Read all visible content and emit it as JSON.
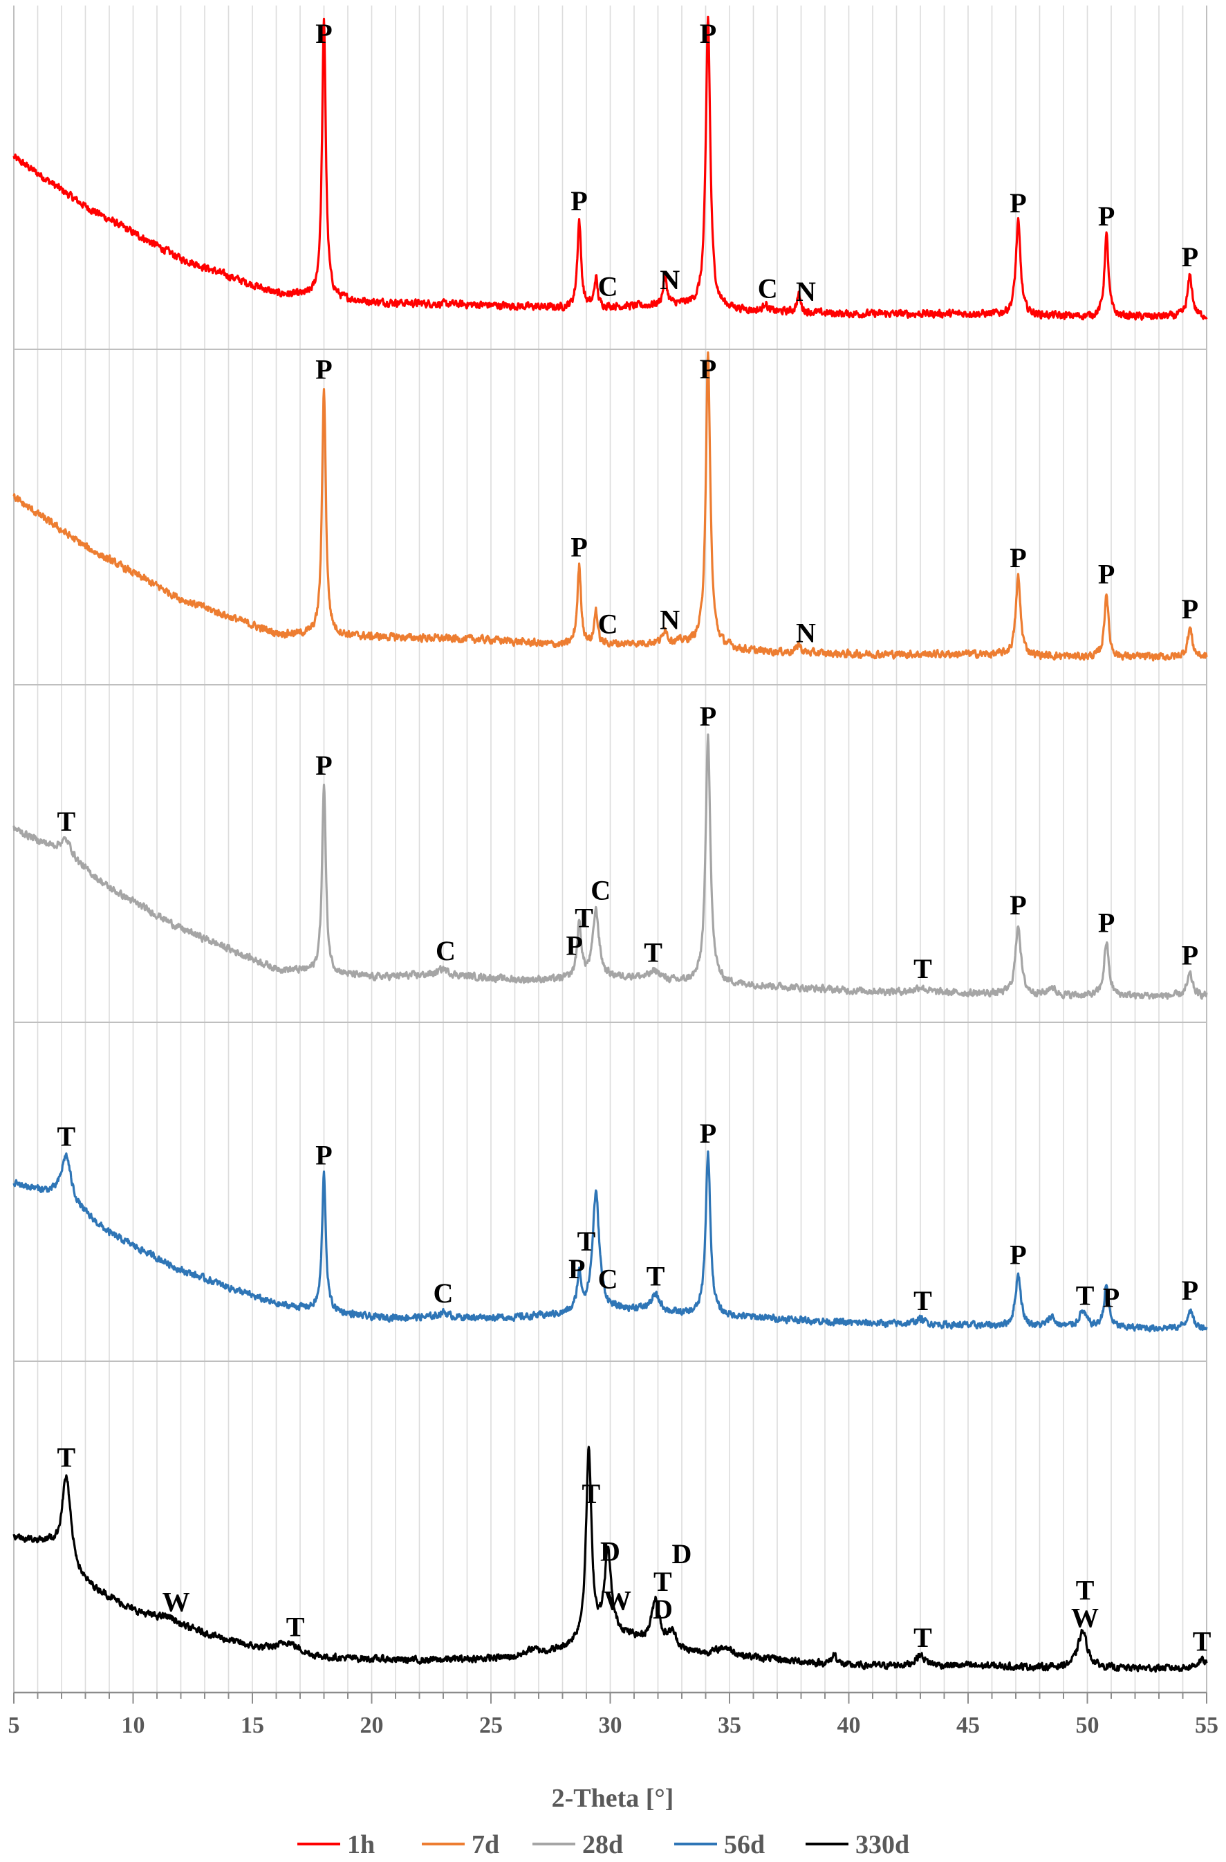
{
  "chart_data": {
    "type": "line",
    "xlabel": "2-Theta [°]",
    "ylabel": "",
    "xlim": [
      5,
      55
    ],
    "x_ticks": [
      5,
      10,
      15,
      20,
      25,
      30,
      35,
      40,
      45,
      50,
      55
    ],
    "grid": "vertical minor every 1°",
    "legend_placement": "bottom",
    "series": [
      {
        "name": "1h",
        "color": "#ff0000",
        "baseline": [
          [
            5,
            0.55
          ],
          [
            8,
            0.38
          ],
          [
            12,
            0.2
          ],
          [
            16,
            0.08
          ],
          [
            20,
            0.05
          ],
          [
            25,
            0.04
          ],
          [
            28,
            0.03
          ],
          [
            33,
            0.04
          ],
          [
            36,
            0.02
          ],
          [
            40,
            0.01
          ],
          [
            45,
            0.01
          ],
          [
            50,
            0.0
          ],
          [
            55,
            0.0
          ]
        ],
        "peaks": [
          [
            18.0,
            0.95,
            0.12
          ],
          [
            28.7,
            0.3,
            0.12
          ],
          [
            29.4,
            0.1,
            0.1
          ],
          [
            32.3,
            0.1,
            0.12
          ],
          [
            34.1,
            1.0,
            0.14
          ],
          [
            36.5,
            0.03,
            0.1
          ],
          [
            37.9,
            0.06,
            0.12
          ],
          [
            47.1,
            0.32,
            0.15
          ],
          [
            50.8,
            0.28,
            0.13
          ],
          [
            54.3,
            0.14,
            0.15
          ]
        ]
      },
      {
        "name": "7d",
        "color": "#ed7d31",
        "baseline": [
          [
            5,
            0.55
          ],
          [
            8,
            0.38
          ],
          [
            12,
            0.2
          ],
          [
            16,
            0.08
          ],
          [
            20,
            0.07
          ],
          [
            25,
            0.06
          ],
          [
            28,
            0.04
          ],
          [
            33,
            0.05
          ],
          [
            36,
            0.02
          ],
          [
            40,
            0.01
          ],
          [
            45,
            0.01
          ],
          [
            50,
            0.0
          ],
          [
            55,
            0.0
          ]
        ],
        "peaks": [
          [
            18.0,
            0.85,
            0.12
          ],
          [
            28.7,
            0.27,
            0.12
          ],
          [
            29.4,
            0.12,
            0.1
          ],
          [
            32.3,
            0.05,
            0.12
          ],
          [
            34.1,
            1.0,
            0.14
          ],
          [
            37.9,
            0.03,
            0.12
          ],
          [
            47.1,
            0.27,
            0.15
          ],
          [
            50.8,
            0.22,
            0.13
          ],
          [
            54.3,
            0.1,
            0.15
          ]
        ]
      },
      {
        "name": "28d",
        "color": "#a5a5a5",
        "baseline": [
          [
            5,
            0.62
          ],
          [
            7,
            0.53
          ],
          [
            9,
            0.4
          ],
          [
            12,
            0.25
          ],
          [
            16,
            0.1
          ],
          [
            20,
            0.07
          ],
          [
            23,
            0.08
          ],
          [
            26,
            0.06
          ],
          [
            28,
            0.06
          ],
          [
            31,
            0.07
          ],
          [
            33,
            0.05
          ],
          [
            36,
            0.04
          ],
          [
            40,
            0.02
          ],
          [
            45,
            0.01
          ],
          [
            50,
            0.0
          ],
          [
            55,
            0.0
          ]
        ],
        "peaks": [
          [
            7.2,
            0.06,
            0.4
          ],
          [
            18.0,
            0.7,
            0.12
          ],
          [
            23.0,
            0.02,
            0.3
          ],
          [
            28.7,
            0.2,
            0.14
          ],
          [
            29.4,
            0.25,
            0.2
          ],
          [
            31.9,
            0.03,
            0.3
          ],
          [
            34.1,
            0.92,
            0.15
          ],
          [
            43.0,
            0.02,
            0.3
          ],
          [
            47.1,
            0.26,
            0.17
          ],
          [
            48.5,
            0.03,
            0.2
          ],
          [
            50.8,
            0.2,
            0.15
          ],
          [
            54.3,
            0.08,
            0.17
          ]
        ]
      },
      {
        "name": "56d",
        "color": "#2e75b6",
        "baseline": [
          [
            5,
            0.55
          ],
          [
            7,
            0.5
          ],
          [
            9,
            0.36
          ],
          [
            12,
            0.22
          ],
          [
            16,
            0.09
          ],
          [
            20,
            0.04
          ],
          [
            23,
            0.04
          ],
          [
            26,
            0.04
          ],
          [
            28,
            0.05
          ],
          [
            31,
            0.07
          ],
          [
            33,
            0.05
          ],
          [
            36,
            0.04
          ],
          [
            40,
            0.02
          ],
          [
            45,
            0.01
          ],
          [
            50,
            0.0
          ],
          [
            55,
            0.0
          ]
        ],
        "peaks": [
          [
            7.2,
            0.17,
            0.3
          ],
          [
            18.0,
            0.52,
            0.12
          ],
          [
            23.0,
            0.02,
            0.3
          ],
          [
            28.7,
            0.14,
            0.14
          ],
          [
            29.4,
            0.45,
            0.22
          ],
          [
            31.9,
            0.06,
            0.3
          ],
          [
            34.1,
            0.62,
            0.15
          ],
          [
            43.0,
            0.02,
            0.3
          ],
          [
            47.1,
            0.2,
            0.17
          ],
          [
            48.5,
            0.04,
            0.2
          ],
          [
            49.8,
            0.06,
            0.25
          ],
          [
            50.8,
            0.16,
            0.15
          ],
          [
            54.3,
            0.07,
            0.17
          ]
        ]
      },
      {
        "name": "330d",
        "color": "#000000",
        "baseline": [
          [
            5,
            0.5
          ],
          [
            6.5,
            0.47
          ],
          [
            8,
            0.32
          ],
          [
            10,
            0.22
          ],
          [
            12,
            0.16
          ],
          [
            15,
            0.08
          ],
          [
            18,
            0.04
          ],
          [
            22,
            0.03
          ],
          [
            26,
            0.04
          ],
          [
            28,
            0.07
          ],
          [
            30,
            0.14
          ],
          [
            31.5,
            0.1
          ],
          [
            33,
            0.06
          ],
          [
            36,
            0.04
          ],
          [
            40,
            0.01
          ],
          [
            45,
            0.01
          ],
          [
            50,
            0.0
          ],
          [
            55,
            0.0
          ]
        ],
        "peaks": [
          [
            7.2,
            0.33,
            0.28
          ],
          [
            11.5,
            0.02,
            0.5
          ],
          [
            16.5,
            0.04,
            0.6
          ],
          [
            26.7,
            0.02,
            0.4
          ],
          [
            29.1,
            0.72,
            0.17
          ],
          [
            29.9,
            0.3,
            0.2
          ],
          [
            31.9,
            0.17,
            0.25
          ],
          [
            32.6,
            0.06,
            0.3
          ],
          [
            34.8,
            0.03,
            0.5
          ],
          [
            39.4,
            0.04,
            0.15
          ],
          [
            43.0,
            0.04,
            0.3
          ],
          [
            49.8,
            0.14,
            0.3
          ],
          [
            54.8,
            0.03,
            0.3
          ]
        ]
      }
    ]
  },
  "peak_labels": [
    [
      {
        "text": "P",
        "x": 18.0
      },
      {
        "text": "P",
        "x": 28.7
      },
      {
        "text": "C",
        "x": 29.9
      },
      {
        "text": "N",
        "x": 32.5
      },
      {
        "text": "P",
        "x": 34.1
      },
      {
        "text": "C",
        "x": 36.6
      },
      {
        "text": "N",
        "x": 38.2
      },
      {
        "text": "P",
        "x": 47.1
      },
      {
        "text": "P",
        "x": 50.8
      },
      {
        "text": "P",
        "x": 54.3
      }
    ],
    [
      {
        "text": "P",
        "x": 18.0
      },
      {
        "text": "P",
        "x": 28.7
      },
      {
        "text": "C",
        "x": 29.9
      },
      {
        "text": "N",
        "x": 32.5
      },
      {
        "text": "P",
        "x": 34.1
      },
      {
        "text": "N",
        "x": 38.2
      },
      {
        "text": "P",
        "x": 47.1
      },
      {
        "text": "P",
        "x": 50.8
      },
      {
        "text": "P",
        "x": 54.3
      }
    ],
    [
      {
        "text": "T",
        "x": 7.2
      },
      {
        "text": "P",
        "x": 18.0
      },
      {
        "text": "C",
        "x": 23.1
      },
      {
        "text": "P",
        "x": 28.5
      },
      {
        "text": "T",
        "x": 28.9
      },
      {
        "text": "C",
        "x": 29.6
      },
      {
        "text": "T",
        "x": 31.8
      },
      {
        "text": "P",
        "x": 34.1
      },
      {
        "text": "T",
        "x": 43.1
      },
      {
        "text": "P",
        "x": 47.1
      },
      {
        "text": "P",
        "x": 50.8
      },
      {
        "text": "P",
        "x": 54.3
      }
    ],
    [
      {
        "text": "T",
        "x": 7.2
      },
      {
        "text": "P",
        "x": 18.0
      },
      {
        "text": "C",
        "x": 23.0
      },
      {
        "text": "P",
        "x": 28.6
      },
      {
        "text": "T",
        "x": 29.0
      },
      {
        "text": "C",
        "x": 29.9
      },
      {
        "text": "T",
        "x": 31.9
      },
      {
        "text": "P",
        "x": 34.1
      },
      {
        "text": "T",
        "x": 43.1
      },
      {
        "text": "P",
        "x": 47.1
      },
      {
        "text": "T",
        "x": 49.9
      },
      {
        "text": "P",
        "x": 51.0
      },
      {
        "text": "P",
        "x": 54.3
      }
    ],
    [
      {
        "text": "T",
        "x": 7.2
      },
      {
        "text": "W",
        "x": 11.8
      },
      {
        "text": "T",
        "x": 16.8
      },
      {
        "text": "T",
        "x": 29.2
      },
      {
        "text": "D",
        "x": 30.0
      },
      {
        "text": "W",
        "x": 30.3
      },
      {
        "text": "D",
        "x": 32.2
      },
      {
        "text": "T",
        "x": 32.2
      },
      {
        "text": "D",
        "x": 33.0
      },
      {
        "text": "T",
        "x": 43.1
      },
      {
        "text": "W",
        "x": 49.9
      },
      {
        "text": "T",
        "x": 49.9
      },
      {
        "text": "T",
        "x": 54.8
      }
    ]
  ]
}
